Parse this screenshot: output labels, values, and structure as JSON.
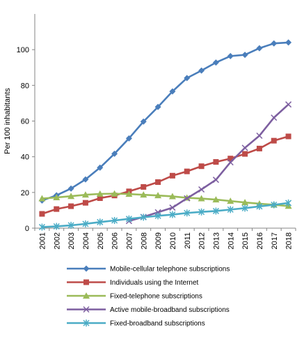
{
  "chart_data": {
    "type": "line",
    "title": "",
    "xlabel": "",
    "ylabel": "Per 100 inhabitants",
    "ylim": [
      0,
      120
    ],
    "yticks": [
      0,
      20,
      40,
      60,
      80,
      100
    ],
    "grid": false,
    "legend_position": "bottom",
    "categories": [
      "2001",
      "2002",
      "2003",
      "2004",
      "2005",
      "2006",
      "2007",
      "2008",
      "2009",
      "2010",
      "2011",
      "2012",
      "2013",
      "2014",
      "2015",
      "2016",
      "2017",
      "2018"
    ],
    "series": [
      {
        "name": "Mobile-cellular telephone subscriptions",
        "color": "#4a7ebb",
        "marker": "diamond",
        "values": [
          15.5,
          18.4,
          22.2,
          27.3,
          33.9,
          41.7,
          50.3,
          59.7,
          67.9,
          76.6,
          84.1,
          88.3,
          92.8,
          96.4,
          97.1,
          100.8,
          103.5,
          104.0
        ]
      },
      {
        "name": "Individuals using the Internet",
        "color": "#be4b48",
        "marker": "square",
        "values": [
          8.0,
          10.7,
          12.3,
          14.2,
          16.8,
          18.3,
          20.6,
          23.1,
          25.8,
          29.4,
          31.8,
          34.7,
          37.1,
          39.0,
          41.6,
          44.6,
          49.0,
          51.4
        ]
      },
      {
        "name": "Fixed-telephone subscriptions",
        "color": "#9bbb59",
        "marker": "triangle",
        "values": [
          16.6,
          17.2,
          17.9,
          18.7,
          19.2,
          19.3,
          19.1,
          18.7,
          18.3,
          17.8,
          17.0,
          16.6,
          16.0,
          15.2,
          14.4,
          13.7,
          13.1,
          12.4
        ]
      },
      {
        "name": "Active mobile-broadband subscriptions",
        "color": "#7d5fa0",
        "marker": "x",
        "values": [
          null,
          null,
          null,
          null,
          null,
          null,
          4.0,
          6.3,
          8.9,
          11.5,
          16.7,
          21.7,
          27.1,
          36.9,
          45.0,
          51.8,
          61.9,
          69.3
        ]
      },
      {
        "name": "Fixed-broadband subscriptions",
        "color": "#4bacc6",
        "marker": "star",
        "values": [
          0.6,
          1.0,
          1.6,
          2.4,
          3.4,
          4.3,
          5.2,
          6.1,
          6.9,
          7.6,
          8.5,
          9.1,
          9.6,
          10.4,
          11.2,
          12.2,
          13.1,
          14.1
        ]
      }
    ]
  }
}
